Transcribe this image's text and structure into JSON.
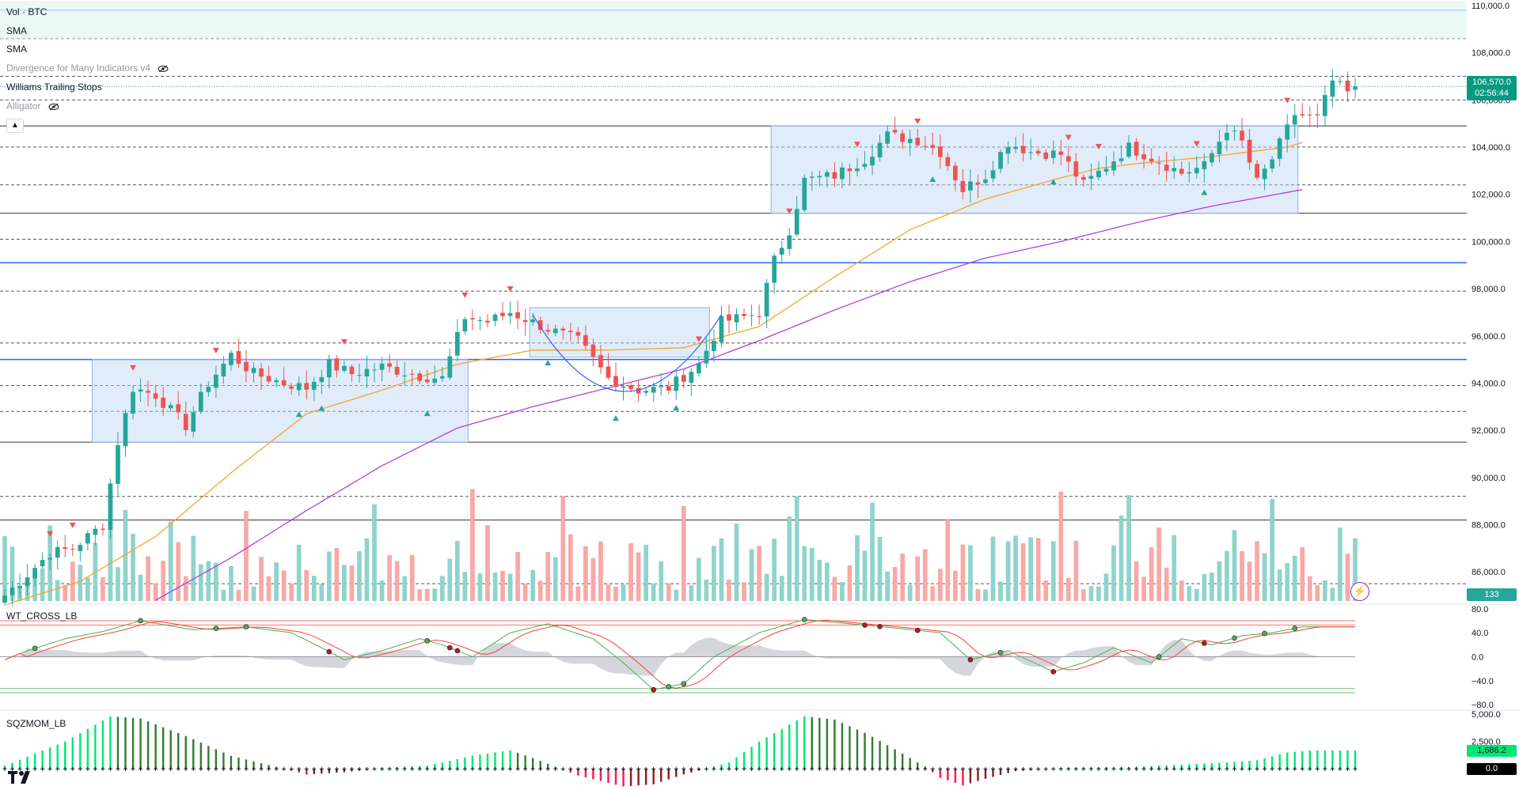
{
  "legend": {
    "vol": "Vol · BTC",
    "sma1": "SMA",
    "sma2": "SMA",
    "divergence": "Divergence for Many Indicators v4",
    "williams": "Williams Trailing Stops",
    "alligator": "Alligator"
  },
  "panes": {
    "wt_title": "WT_CROSS_LB",
    "sqz_title": "SQZMOM_LB"
  },
  "badges": {
    "price": "106,570.0",
    "countdown": "02:56:44",
    "volume": "133",
    "sqz_value": "1,686.2",
    "sqz_zero": "0.0"
  },
  "colors": {
    "up": "#26a69a",
    "down": "#ef5350",
    "vol_up": "#8fd4cc",
    "vol_down": "#f7a9a7",
    "sma_fast": "#f5a623",
    "sma_slow": "#b13de6",
    "box": "#bcd4f5",
    "blue_level": "#2962ff",
    "wt_green": "#4caf50",
    "wt_red": "#f44336"
  },
  "chart_data": [
    {
      "type": "candlestick",
      "title": "",
      "ylim": [
        84500,
        110000
      ],
      "y_ticks": [
        "110,000.0",
        "108,000.0",
        "106,000.0",
        "104,000.0",
        "102,000.0",
        "100,000.0",
        "98,000.0",
        "96,000.0",
        "94,000.0",
        "92,000.0",
        "90,000.0",
        "88,000.0",
        "86,000.0"
      ],
      "last_price": 106570,
      "anchors": [
        [
          0,
          85000
        ],
        [
          6,
          86800
        ],
        [
          9,
          87000
        ],
        [
          13,
          88000
        ],
        [
          15,
          91500
        ],
        [
          17,
          93800
        ],
        [
          20,
          93500
        ],
        [
          24,
          92200
        ],
        [
          27,
          94000
        ],
        [
          30,
          95200
        ],
        [
          33,
          94400
        ],
        [
          37,
          94000
        ],
        [
          40,
          93800
        ],
        [
          43,
          94800
        ],
        [
          46,
          94400
        ],
        [
          50,
          94700
        ],
        [
          55,
          94300
        ],
        [
          58,
          94200
        ],
        [
          61,
          96800
        ],
        [
          64,
          96600
        ],
        [
          67,
          97000
        ],
        [
          72,
          96300
        ],
        [
          76,
          95800
        ],
        [
          80,
          94200
        ],
        [
          84,
          93700
        ],
        [
          88,
          93800
        ],
        [
          92,
          94800
        ],
        [
          95,
          96600
        ],
        [
          98,
          96800
        ],
        [
          100,
          97000
        ],
        [
          102,
          99200
        ],
        [
          104,
          100500
        ],
        [
          106,
          102600
        ],
        [
          110,
          102800
        ],
        [
          114,
          103500
        ],
        [
          117,
          104500
        ],
        [
          121,
          104300
        ],
        [
          124,
          103800
        ],
        [
          127,
          102200
        ],
        [
          130,
          102800
        ],
        [
          133,
          104200
        ],
        [
          136,
          103800
        ],
        [
          140,
          103700
        ],
        [
          143,
          102400
        ],
        [
          146,
          103200
        ],
        [
          149,
          104000
        ],
        [
          153,
          103400
        ],
        [
          156,
          102900
        ],
        [
          159,
          103200
        ],
        [
          162,
          104800
        ],
        [
          164,
          104200
        ],
        [
          166,
          102500
        ],
        [
          168,
          103500
        ],
        [
          171,
          105400
        ],
        [
          174,
          105200
        ],
        [
          176,
          106800
        ],
        [
          178,
          106300
        ],
        [
          179,
          106570
        ]
      ],
      "horizontal_levels": {
        "solid_black": [
          104900,
          101200,
          91500,
          88200
        ],
        "solid_blue": [
          109800,
          99100,
          95000
        ],
        "dashed": [
          108600,
          107000,
          106000,
          104000,
          102400,
          100100,
          97900,
          95700,
          93900,
          92800,
          89200,
          85500
        ]
      },
      "boxes": [
        {
          "x": [
            12,
            61
          ],
          "y": [
            91500,
            95000
          ],
          "color": "#bcd4f5"
        },
        {
          "x": [
            70,
            93
          ],
          "y": [
            95100,
            97200
          ],
          "color": "#bcd4f5"
        },
        {
          "x": [
            102,
            171
          ],
          "y": [
            101200,
            104900
          ],
          "color": "#bcd4f5"
        }
      ],
      "series": [
        {
          "name": "SMA",
          "anchors": [
            [
              0,
              84600
            ],
            [
              10,
              85600
            ],
            [
              20,
              87500
            ],
            [
              30,
              90200
            ],
            [
              40,
              92700
            ],
            [
              50,
              93700
            ],
            [
              60,
              94800
            ],
            [
              70,
              95400
            ],
            [
              80,
              95400
            ],
            [
              90,
              95500
            ],
            [
              100,
              96400
            ],
            [
              110,
              98500
            ],
            [
              120,
              100500
            ],
            [
              130,
              101800
            ],
            [
              140,
              102700
            ],
            [
              145,
              103100
            ],
            [
              150,
              103300
            ],
            [
              160,
              103600
            ],
            [
              170,
              104000
            ],
            [
              172,
              104200
            ]
          ]
        },
        {
          "name": "SMA",
          "anchors": [
            [
              20,
              84800
            ],
            [
              30,
              86600
            ],
            [
              40,
              88600
            ],
            [
              50,
              90500
            ],
            [
              60,
              92100
            ],
            [
              70,
              93000
            ],
            [
              80,
              93800
            ],
            [
              90,
              94600
            ],
            [
              100,
              95800
            ],
            [
              110,
              97100
            ],
            [
              120,
              98300
            ],
            [
              130,
              99300
            ],
            [
              140,
              100000
            ],
            [
              150,
              100800
            ],
            [
              160,
              101500
            ],
            [
              172,
              102200
            ]
          ]
        }
      ],
      "signals": {
        "down_marker_bars": [
          6,
          9,
          17,
          28,
          45,
          61,
          67,
          92,
          104,
          113,
          121,
          141,
          145,
          158,
          170
        ],
        "up_marker_bars": [
          39,
          42,
          56,
          72,
          81,
          89,
          123,
          139,
          159
        ]
      }
    },
    {
      "type": "bar",
      "title": "Vol · BTC",
      "last_value": 133
    },
    {
      "type": "line",
      "title": "WT_CROSS_LB",
      "ylim": [
        -85,
        85
      ],
      "y_ticks": [
        "80.0",
        "40.0",
        "0.0",
        "−40.0",
        "−80.0"
      ],
      "levels": [
        60,
        53,
        -53,
        -60
      ],
      "anchors_wt1": [
        [
          0,
          -5
        ],
        [
          3,
          10
        ],
        [
          8,
          30
        ],
        [
          13,
          42
        ],
        [
          18,
          60
        ],
        [
          25,
          45
        ],
        [
          32,
          50
        ],
        [
          38,
          40
        ],
        [
          42,
          15
        ],
        [
          45,
          -5
        ],
        [
          50,
          10
        ],
        [
          55,
          30
        ],
        [
          58,
          20
        ],
        [
          62,
          0
        ],
        [
          67,
          40
        ],
        [
          72,
          55
        ],
        [
          78,
          30
        ],
        [
          82,
          -10
        ],
        [
          86,
          -55
        ],
        [
          90,
          -45
        ],
        [
          94,
          0
        ],
        [
          100,
          40
        ],
        [
          106,
          62
        ],
        [
          112,
          55
        ],
        [
          118,
          48
        ],
        [
          124,
          40
        ],
        [
          128,
          -5
        ],
        [
          133,
          10
        ],
        [
          139,
          -25
        ],
        [
          143,
          -10
        ],
        [
          147,
          15
        ],
        [
          152,
          -10
        ],
        [
          156,
          30
        ],
        [
          160,
          20
        ],
        [
          164,
          35
        ],
        [
          168,
          40
        ],
        [
          172,
          50
        ]
      ],
      "cross_dot_bars": [
        4,
        18,
        28,
        32,
        43,
        56,
        59,
        60,
        86,
        88,
        90,
        106,
        114,
        116,
        121,
        128,
        132,
        139,
        153,
        159,
        163,
        167,
        171
      ]
    },
    {
      "type": "bar",
      "title": "SQZMOM_LB",
      "ylim": [
        -1700,
        5000
      ],
      "y_ticks": [
        "5,000.0",
        "2,500.0"
      ],
      "last_value": 1686.2,
      "anchors": [
        [
          0,
          300
        ],
        [
          8,
          2500
        ],
        [
          14,
          4800
        ],
        [
          18,
          4600
        ],
        [
          24,
          3000
        ],
        [
          30,
          1200
        ],
        [
          36,
          200
        ],
        [
          40,
          -500
        ],
        [
          45,
          -300
        ],
        [
          50,
          100
        ],
        [
          56,
          300
        ],
        [
          62,
          1200
        ],
        [
          67,
          1700
        ],
        [
          70,
          1000
        ],
        [
          76,
          -600
        ],
        [
          82,
          -1600
        ],
        [
          86,
          -1400
        ],
        [
          90,
          -500
        ],
        [
          96,
          600
        ],
        [
          100,
          2500
        ],
        [
          106,
          4800
        ],
        [
          110,
          4500
        ],
        [
          114,
          3300
        ],
        [
          118,
          1800
        ],
        [
          122,
          200
        ],
        [
          124,
          -800
        ],
        [
          127,
          -1500
        ],
        [
          130,
          -900
        ],
        [
          134,
          -200
        ],
        [
          140,
          100
        ],
        [
          150,
          200
        ],
        [
          156,
          400
        ],
        [
          162,
          600
        ],
        [
          166,
          800
        ],
        [
          170,
          1500
        ],
        [
          173,
          1686
        ]
      ]
    }
  ]
}
